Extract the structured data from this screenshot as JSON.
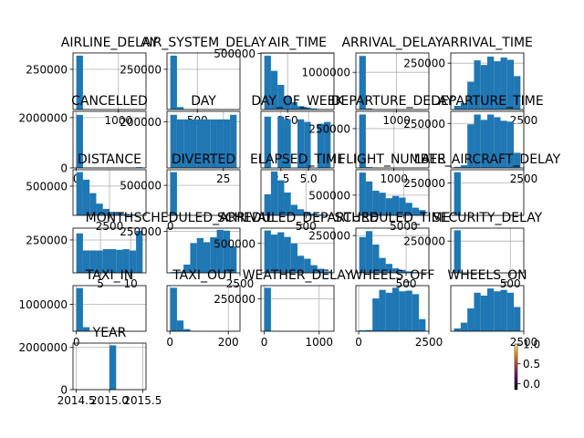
{
  "chart_data": [
    {
      "type": "bar",
      "title": "AIRLINE_DELAY",
      "values": [
        335000,
        3000,
        400,
        100,
        50,
        20,
        10,
        5,
        2,
        1
      ],
      "xlim": [
        -70,
        1650
      ],
      "ylim": [
        0,
        352000
      ],
      "yticks": [
        {
          "v": 250000,
          "l": "250000"
        }
      ],
      "xticks": [
        {
          "v": 1000,
          "l": "1000"
        }
      ],
      "grid": true
    },
    {
      "type": "bar",
      "title": "AIR_SYSTEM_DELAY",
      "values": [
        335000,
        15000,
        1000,
        200,
        50,
        10,
        5,
        2,
        1,
        1
      ],
      "xlim": [
        -70,
        1300
      ],
      "ylim": [
        0,
        352000
      ],
      "yticks": [
        {
          "v": 250000,
          "l": "250000"
        }
      ],
      "xticks": [
        {
          "v": 500,
          "l": "500"
        }
      ],
      "grid": true
    },
    {
      "type": "bar",
      "title": "AIR_TIME",
      "values": [
        480000,
        345000,
        220000,
        120000,
        65000,
        30000,
        18000,
        9000,
        3000,
        1000
      ],
      "xlim": [
        -20,
        720
      ],
      "ylim": [
        0,
        505000
      ],
      "yticks": [
        {
          "v": 500000,
          "l": "500000"
        }
      ],
      "xticks": [
        {
          "v": 250,
          "l": "250"
        }
      ],
      "grid": true
    },
    {
      "type": "bar",
      "title": "ARRIVAL_DELAY",
      "values": [
        1440000,
        30000,
        4000,
        800,
        200,
        60,
        20,
        8,
        3,
        1
      ],
      "xlim": [
        -160,
        1920
      ],
      "ylim": [
        0,
        1520000
      ],
      "yticks": [
        {
          "v": 1000000,
          "l": "1000000"
        }
      ],
      "xticks": [
        {
          "v": 1000,
          "l": "1000"
        }
      ],
      "grid": true
    },
    {
      "type": "bar",
      "title": "ARRIVAL_TIME",
      "values": [
        20000,
        35000,
        150000,
        265000,
        240000,
        285000,
        260000,
        280000,
        268000,
        180000
      ],
      "xlim": [
        -100,
        2500
      ],
      "ylim": [
        0,
        305000
      ],
      "yticks": [
        {
          "v": 250000,
          "l": "250000"
        }
      ],
      "xticks": [
        {
          "v": 2500,
          "l": "2500"
        }
      ],
      "grid": true
    },
    {
      "type": "bar",
      "title": "CANCELLED",
      "values": [
        2110000,
        0,
        0,
        0,
        0,
        0,
        0,
        0,
        0,
        30000
      ],
      "xlim": [
        -0.05,
        1.05
      ],
      "ylim": [
        0,
        2250000
      ],
      "yticks": [
        {
          "v": 0,
          "l": "0"
        },
        {
          "v": 2000000,
          "l": "2000000"
        }
      ],
      "xticks": [
        {
          "v": 0,
          "l": "0"
        }
      ],
      "grid": true
    },
    {
      "type": "bar",
      "title": "DAY",
      "values": [
        230000,
        210000,
        210000,
        210000,
        210000,
        210000,
        210000,
        210000,
        210000,
        230000
      ],
      "xlim": [
        -0.5,
        32.5
      ],
      "ylim": [
        0,
        245000
      ],
      "yticks": [
        {
          "v": 200000,
          "l": "200000"
        }
      ],
      "xticks": [
        {
          "v": 25,
          "l": "25"
        }
      ],
      "grid": true
    },
    {
      "type": "bar",
      "title": "DAY_OF_WEEK",
      "values": [
        290000,
        0,
        290000,
        275000,
        0,
        275000,
        260000,
        0,
        250000,
        260000
      ],
      "xlim": [
        0.7,
        7.3
      ],
      "ylim": [
        0,
        320000
      ],
      "yticks": [],
      "xticks": [
        {
          "v": 2.5,
          "l": "2.5"
        },
        {
          "v": 5.0,
          "l": "5.0"
        }
      ],
      "grid": true
    },
    {
      "type": "bar",
      "title": "DEPARTURE_DELAY",
      "values": [
        340000,
        5000,
        800,
        200,
        50,
        10,
        5,
        2,
        1,
        1
      ],
      "xlim": [
        -80,
        1990
      ],
      "ylim": [
        0,
        360000
      ],
      "yticks": [
        {
          "v": 250000,
          "l": "250000"
        }
      ],
      "xticks": [
        {
          "v": 1000,
          "l": "1000"
        }
      ],
      "grid": true
    },
    {
      "type": "bar",
      "title": "DEPARTURE_TIME",
      "values": [
        6000,
        15000,
        245000,
        300000,
        270000,
        300000,
        285000,
        265000,
        260000,
        85000
      ],
      "xlim": [
        -100,
        2500
      ],
      "ylim": [
        0,
        318000
      ],
      "yticks": [
        {
          "v": 250000,
          "l": "250000"
        }
      ],
      "xticks": [
        {
          "v": 2500,
          "l": "2500"
        }
      ],
      "grid": true
    },
    {
      "type": "bar",
      "title": "DISTANCE",
      "values": [
        740000,
        610000,
        380000,
        200000,
        110000,
        60000,
        45000,
        25000,
        15000,
        8000
      ],
      "xlim": [
        -200,
        5200
      ],
      "ylim": [
        0,
        780000
      ],
      "yticks": [
        {
          "v": 500000,
          "l": "500000"
        }
      ],
      "xticks": [
        {
          "v": 2500,
          "l": "2500"
        }
      ],
      "grid": true
    },
    {
      "type": "bar",
      "title": "DIVERTED",
      "values": [
        720000,
        0,
        0,
        0,
        0,
        0,
        0,
        0,
        0,
        2000
      ],
      "xlim": [
        -0.05,
        1.05
      ],
      "ylim": [
        0,
        760000
      ],
      "yticks": [
        {
          "v": 500000,
          "l": "500000"
        }
      ],
      "xticks": [
        {
          "v": 0,
          "l": "0"
        }
      ],
      "grid": true
    },
    {
      "type": "bar",
      "title": "ELAPSED_TIME",
      "values": [
        120000,
        250000,
        200000,
        130000,
        60000,
        35000,
        20000,
        10000,
        5000,
        2000
      ],
      "xlim": [
        -30,
        830
      ],
      "ylim": [
        0,
        260000
      ],
      "yticks": [],
      "xticks": [
        {
          "v": 500,
          "l": "500"
        }
      ],
      "grid": true
    },
    {
      "type": "bar",
      "title": "FLIGHT_NUMBER",
      "values": [
        1060000,
        840000,
        610000,
        560000,
        425000,
        480000,
        440000,
        310000,
        190000,
        130000
      ],
      "xlim": [
        -300,
        7800
      ],
      "ylim": [
        0,
        1130000
      ],
      "yticks": [
        {
          "v": 500000,
          "l": "500000"
        }
      ],
      "xticks": [
        {
          "v": 5000,
          "l": "5000"
        }
      ],
      "grid": true
    },
    {
      "type": "bar",
      "title": "LATE_AIRCRAFT_DELAY",
      "values": [
        333000,
        3000,
        300,
        80,
        20,
        5,
        2,
        1,
        1,
        1
      ],
      "xlim": [
        -70,
        1400
      ],
      "ylim": [
        0,
        352000
      ],
      "yticks": [
        {
          "v": 250000,
          "l": "250000"
        }
      ],
      "xticks": [],
      "grid": true
    },
    {
      "type": "bar",
      "title": "MONTH",
      "values": [
        300000,
        170000,
        170000,
        170000,
        180000,
        180000,
        175000,
        180000,
        170000,
        320000
      ],
      "xlim": [
        0.45,
        12.55
      ],
      "ylim": [
        0,
        340000
      ],
      "yticks": [
        {
          "v": 250000,
          "l": "250000"
        }
      ],
      "xticks": [
        {
          "v": 5,
          "l": "5"
        },
        {
          "v": 10,
          "l": "10"
        }
      ],
      "grid": true
    },
    {
      "type": "bar",
      "title": "SCHEDULED_ARRIVAL",
      "values": [
        5000,
        8000,
        50000,
        180000,
        210000,
        185000,
        215000,
        260000,
        255000,
        160000
      ],
      "xlim": [
        -100,
        2500
      ],
      "ylim": [
        0,
        270000
      ],
      "yticks": [
        {
          "v": 250000,
          "l": "250000"
        }
      ],
      "xticks": [
        {
          "v": 2500,
          "l": "2500"
        }
      ],
      "grid": true
    },
    {
      "type": "bar",
      "title": "SCHEDULED_DEPARTURE",
      "values": [
        720000,
        650000,
        690000,
        610000,
        500000,
        290000,
        240000,
        130000,
        70000,
        25000
      ],
      "xlim": [
        -30,
        2400
      ],
      "ylim": [
        0,
        760000
      ],
      "yticks": [
        {
          "v": 500000,
          "l": "500000"
        }
      ],
      "xticks": [],
      "grid": true
    },
    {
      "type": "bar",
      "title": "SCHEDULED_TIME",
      "values": [
        240000,
        280000,
        190000,
        100000,
        60000,
        30000,
        20000,
        10000,
        5000,
        2000
      ],
      "xlim": [
        -30,
        740
      ],
      "ylim": [
        0,
        300000
      ],
      "yticks": [
        {
          "v": 250000,
          "l": "250000"
        }
      ],
      "xticks": [
        {
          "v": 500,
          "l": "500"
        }
      ],
      "grid": true
    },
    {
      "type": "bar",
      "title": "SECURITY_DELAY",
      "values": [
        335000,
        500,
        50,
        10,
        5,
        2,
        1,
        1,
        1,
        1
      ],
      "xlim": [
        -30,
        620
      ],
      "ylim": [
        0,
        352000
      ],
      "yticks": [
        {
          "v": 250000,
          "l": "250000"
        }
      ],
      "xticks": [
        {
          "v": 500,
          "l": "500"
        }
      ],
      "grid": true
    },
    {
      "type": "bar",
      "title": "TAXI_IN",
      "values": [
        1610000,
        150000,
        20000,
        4000,
        1000,
        300,
        100,
        50,
        20,
        10
      ],
      "xlim": [
        -10,
        210
      ],
      "ylim": [
        0,
        1700000
      ],
      "yticks": [
        {
          "v": 1000000,
          "l": "1000000"
        }
      ],
      "xticks": [
        {
          "v": 0,
          "l": "0"
        }
      ],
      "grid": true
    },
    {
      "type": "bar",
      "title": "TAXI_OUT",
      "values": [
        1620000,
        400000,
        80000,
        15000,
        4000,
        1000,
        300,
        100,
        50,
        20
      ],
      "xlim": [
        -10,
        240
      ],
      "ylim": [
        0,
        1700000
      ],
      "yticks": [],
      "xticks": [
        {
          "v": 0,
          "l": "0"
        },
        {
          "v": 200,
          "l": "200"
        }
      ],
      "grid": true
    },
    {
      "type": "bar",
      "title": "WEATHER_DELAY",
      "values": [
        335000,
        2000,
        300,
        80,
        20,
        5,
        2,
        1,
        1,
        1
      ],
      "xlim": [
        -60,
        1270
      ],
      "ylim": [
        0,
        352000
      ],
      "yticks": [
        {
          "v": 250000,
          "l": "250000"
        }
      ],
      "xticks": [
        {
          "v": 0,
          "l": "0"
        },
        {
          "v": 1000,
          "l": "1000"
        }
      ],
      "grid": true
    },
    {
      "type": "bar",
      "title": "WHEELS_OFF",
      "values": [
        6000,
        8000,
        230000,
        290000,
        270000,
        305000,
        280000,
        285000,
        260000,
        85000
      ],
      "xlim": [
        -100,
        2500
      ],
      "ylim": [
        0,
        320000
      ],
      "yticks": [],
      "xticks": [
        {
          "v": 0,
          "l": "0"
        },
        {
          "v": 2500,
          "l": "2500"
        }
      ],
      "grid": true
    },
    {
      "type": "bar",
      "title": "WHEELS_ON",
      "values": [
        20000,
        60000,
        160000,
        270000,
        250000,
        300000,
        280000,
        290000,
        270000,
        170000
      ],
      "xlim": [
        -100,
        2500
      ],
      "ylim": [
        0,
        320000
      ],
      "yticks": [],
      "xticks": [
        {
          "v": 2500,
          "l": "2500"
        }
      ],
      "grid": true
    },
    {
      "type": "bar",
      "title": "YEAR",
      "values": [
        0,
        0,
        0,
        0,
        0,
        1,
        0,
        0,
        0,
        0
      ],
      "xlim": [
        2014.45,
        2015.55
      ],
      "ylim": [
        0,
        1.05
      ],
      "yticks": [
        {
          "v": 0,
          "l": "0"
        },
        {
          "v": 0.9524,
          "l": "2000000"
        }
      ],
      "xticks": [
        {
          "v": 2014.5,
          "l": "2014.5"
        },
        {
          "v": 2015.0,
          "l": "2015.0"
        },
        {
          "v": 2015.5,
          "l": "2015.5"
        }
      ],
      "grid": true
    },
    {
      "type": "colorbar",
      "colors": [
        "#000004",
        "#420a68",
        "#932667",
        "#dd513a",
        "#fca50a",
        "#fcffa4"
      ],
      "ylim": [
        -0.15,
        1.0
      ],
      "yticks": [
        {
          "v": 0.0,
          "l": "0.0"
        },
        {
          "v": 0.5,
          "l": "0.5"
        },
        {
          "v": 1.0,
          "l": "1.0"
        }
      ]
    }
  ],
  "style": {
    "bar_color": "#1f77b4",
    "grid_color": "#b0b0b0",
    "axis_color": "#000000"
  }
}
